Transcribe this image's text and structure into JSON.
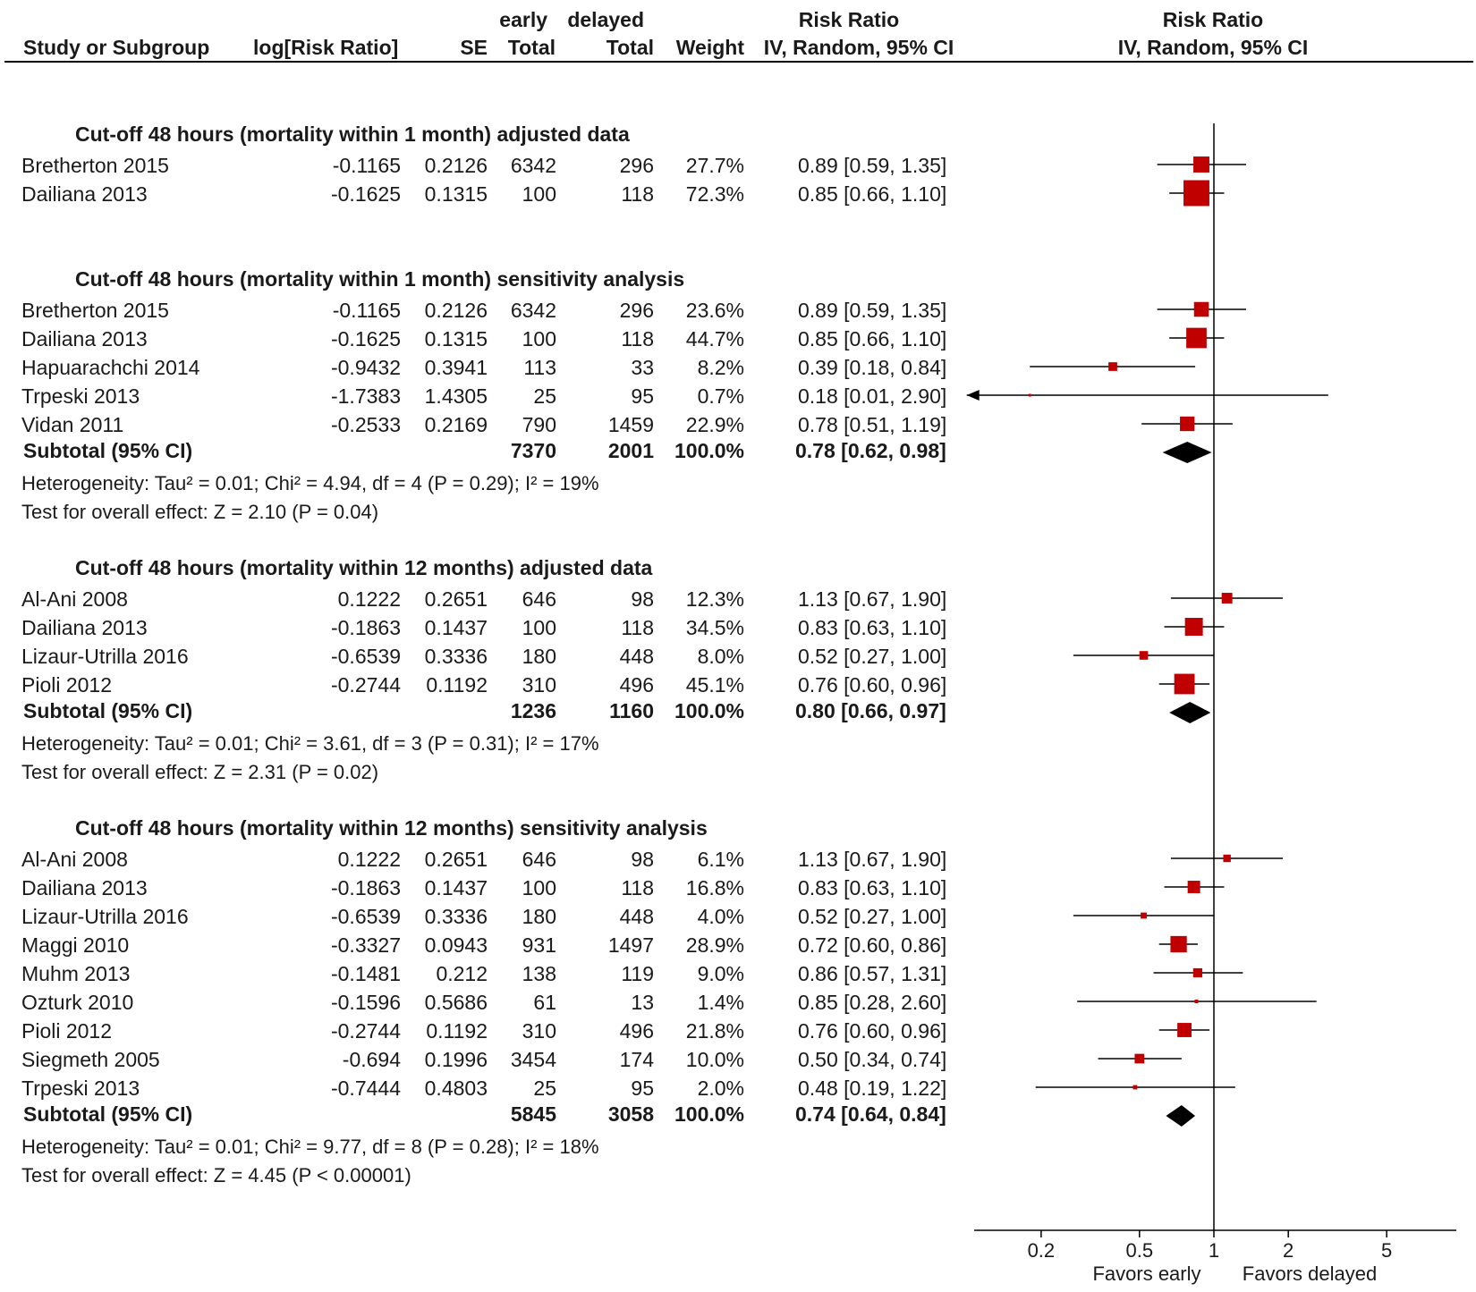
{
  "header": {
    "study_col": "Study or Subgroup",
    "logrr_col": "log[Risk Ratio]",
    "se_col": "SE",
    "early_top": "early",
    "early_total": "Total",
    "delayed_top": "delayed",
    "delayed_total": "Total",
    "weight_col": "Weight",
    "rr_top": "Risk Ratio",
    "rr_method": "IV, Random, 95% CI",
    "plot_top": "Risk Ratio",
    "plot_method": "IV, Random, 95% CI"
  },
  "groups": [
    {
      "title": "Cut-off 48 hours (mortality within 1 month) adjusted data",
      "rows": [
        {
          "study": "Bretherton 2015",
          "logrr": "-0.1165",
          "se": "0.2126",
          "early": "6342",
          "delayed": "296",
          "weight": "27.7%",
          "ci": "0.89 [0.59, 1.35]"
        },
        {
          "study": "Dailiana 2013",
          "logrr": "-0.1625",
          "se": "0.1315",
          "early": "100",
          "delayed": "118",
          "weight": "72.3%",
          "ci": "0.85 [0.66, 1.10]"
        }
      ]
    },
    {
      "title": "Cut-off 48 hours (mortality within 1 month) sensitivity analysis",
      "rows": [
        {
          "study": "Bretherton 2015",
          "logrr": "-0.1165",
          "se": "0.2126",
          "early": "6342",
          "delayed": "296",
          "weight": "23.6%",
          "ci": "0.89 [0.59, 1.35]"
        },
        {
          "study": "Dailiana 2013",
          "logrr": "-0.1625",
          "se": "0.1315",
          "early": "100",
          "delayed": "118",
          "weight": "44.7%",
          "ci": "0.85 [0.66, 1.10]"
        },
        {
          "study": "Hapuarachchi 2014",
          "logrr": "-0.9432",
          "se": "0.3941",
          "early": "113",
          "delayed": "33",
          "weight": "8.2%",
          "ci": "0.39 [0.18, 0.84]"
        },
        {
          "study": "Trpeski 2013",
          "logrr": "-1.7383",
          "se": "1.4305",
          "early": "25",
          "delayed": "95",
          "weight": "0.7%",
          "ci": "0.18 [0.01, 2.90]"
        },
        {
          "study": "Vidan 2011",
          "logrr": "-0.2533",
          "se": "0.2169",
          "early": "790",
          "delayed": "1459",
          "weight": "22.9%",
          "ci": "0.78 [0.51, 1.19]"
        }
      ],
      "subtotal": {
        "label": "Subtotal (95% CI)",
        "early": "7370",
        "delayed": "2001",
        "weight": "100.0%",
        "ci": "0.78 [0.62, 0.98]"
      },
      "heterogeneity": "Heterogeneity: Tau² = 0.01; Chi² = 4.94, df = 4 (P = 0.29); I² = 19%",
      "overall": "Test for overall effect: Z = 2.10 (P = 0.04)"
    },
    {
      "title": "Cut-off 48 hours (mortality within 12 months) adjusted data",
      "rows": [
        {
          "study": "Al-Ani 2008",
          "logrr": "0.1222",
          "se": "0.2651",
          "early": "646",
          "delayed": "98",
          "weight": "12.3%",
          "ci": "1.13 [0.67, 1.90]"
        },
        {
          "study": "Dailiana 2013",
          "logrr": "-0.1863",
          "se": "0.1437",
          "early": "100",
          "delayed": "118",
          "weight": "34.5%",
          "ci": "0.83 [0.63, 1.10]"
        },
        {
          "study": "Lizaur-Utrilla 2016",
          "logrr": "-0.6539",
          "se": "0.3336",
          "early": "180",
          "delayed": "448",
          "weight": "8.0%",
          "ci": "0.52 [0.27, 1.00]"
        },
        {
          "study": "Pioli 2012",
          "logrr": "-0.2744",
          "se": "0.1192",
          "early": "310",
          "delayed": "496",
          "weight": "45.1%",
          "ci": "0.76 [0.60, 0.96]"
        }
      ],
      "subtotal": {
        "label": "Subtotal (95% CI)",
        "early": "1236",
        "delayed": "1160",
        "weight": "100.0%",
        "ci": "0.80 [0.66, 0.97]"
      },
      "heterogeneity": "Heterogeneity: Tau² = 0.01; Chi² = 3.61, df = 3 (P = 0.31); I² = 17%",
      "overall": "Test for overall effect: Z = 2.31 (P = 0.02)"
    },
    {
      "title": "Cut-off 48 hours (mortality within 12 months) sensitivity analysis",
      "rows": [
        {
          "study": "Al-Ani 2008",
          "logrr": "0.1222",
          "se": "0.2651",
          "early": "646",
          "delayed": "98",
          "weight": "6.1%",
          "ci": "1.13 [0.67, 1.90]"
        },
        {
          "study": "Dailiana 2013",
          "logrr": "-0.1863",
          "se": "0.1437",
          "early": "100",
          "delayed": "118",
          "weight": "16.8%",
          "ci": "0.83 [0.63, 1.10]"
        },
        {
          "study": "Lizaur-Utrilla 2016",
          "logrr": "-0.6539",
          "se": "0.3336",
          "early": "180",
          "delayed": "448",
          "weight": "4.0%",
          "ci": "0.52 [0.27, 1.00]"
        },
        {
          "study": "Maggi 2010",
          "logrr": "-0.3327",
          "se": "0.0943",
          "early": "931",
          "delayed": "1497",
          "weight": "28.9%",
          "ci": "0.72 [0.60, 0.86]"
        },
        {
          "study": "Muhm 2013",
          "logrr": "-0.1481",
          "se": "0.212",
          "early": "138",
          "delayed": "119",
          "weight": "9.0%",
          "ci": "0.86 [0.57, 1.31]"
        },
        {
          "study": "Ozturk 2010",
          "logrr": "-0.1596",
          "se": "0.5686",
          "early": "61",
          "delayed": "13",
          "weight": "1.4%",
          "ci": "0.85 [0.28, 2.60]"
        },
        {
          "study": "Pioli 2012",
          "logrr": "-0.2744",
          "se": "0.1192",
          "early": "310",
          "delayed": "496",
          "weight": "21.8%",
          "ci": "0.76 [0.60, 0.96]"
        },
        {
          "study": "Siegmeth 2005",
          "logrr": "-0.694",
          "se": "0.1996",
          "early": "3454",
          "delayed": "174",
          "weight": "10.0%",
          "ci": "0.50 [0.34, 0.74]"
        },
        {
          "study": "Trpeski 2013",
          "logrr": "-0.7444",
          "se": "0.4803",
          "early": "25",
          "delayed": "95",
          "weight": "2.0%",
          "ci": "0.48 [0.19, 1.22]"
        }
      ],
      "subtotal": {
        "label": "Subtotal (95% CI)",
        "early": "5845",
        "delayed": "3058",
        "weight": "100.0%",
        "ci": "0.74 [0.64, 0.84]"
      },
      "heterogeneity": "Heterogeneity: Tau² = 0.01; Chi² = 9.77, df = 8 (P = 0.28); I² = 18%",
      "overall": "Test for overall effect: Z = 4.45 (P < 0.00001)"
    }
  ],
  "axis": {
    "ticks": [
      0.2,
      0.5,
      1,
      2,
      5
    ],
    "tick_labels": [
      "0.2",
      "0.5",
      "1",
      "2",
      "5"
    ],
    "left_label": "Favors early",
    "right_label": "Favors delayed"
  },
  "colors": {
    "marker": "#c00000",
    "diamond": "#000000",
    "line": "#000000"
  },
  "chart_data": {
    "type": "forest",
    "title": "Risk Ratio IV, Random, 95% CI",
    "xscale": "log",
    "xlim": [
      0.1,
      10
    ],
    "reference_line": 1,
    "xlabel_left": "Favors early",
    "xlabel_right": "Favors delayed",
    "series": [
      {
        "group": "Cut-off 48 hours (mortality within 1 month) adjusted data",
        "points": [
          {
            "study": "Bretherton 2015",
            "rr": 0.89,
            "lower": 0.59,
            "upper": 1.35,
            "weight": 27.7
          },
          {
            "study": "Dailiana 2013",
            "rr": 0.85,
            "lower": 0.66,
            "upper": 1.1,
            "weight": 72.3
          }
        ]
      },
      {
        "group": "Cut-off 48 hours (mortality within 1 month) sensitivity analysis",
        "points": [
          {
            "study": "Bretherton 2015",
            "rr": 0.89,
            "lower": 0.59,
            "upper": 1.35,
            "weight": 23.6
          },
          {
            "study": "Dailiana 2013",
            "rr": 0.85,
            "lower": 0.66,
            "upper": 1.1,
            "weight": 44.7
          },
          {
            "study": "Hapuarachchi 2014",
            "rr": 0.39,
            "lower": 0.18,
            "upper": 0.84,
            "weight": 8.2
          },
          {
            "study": "Trpeski 2013",
            "rr": 0.18,
            "lower": 0.01,
            "upper": 2.9,
            "weight": 0.7
          },
          {
            "study": "Vidan 2011",
            "rr": 0.78,
            "lower": 0.51,
            "upper": 1.19,
            "weight": 22.9
          }
        ],
        "subtotal": {
          "rr": 0.78,
          "lower": 0.62,
          "upper": 0.98
        }
      },
      {
        "group": "Cut-off 48 hours (mortality within 12 months) adjusted data",
        "points": [
          {
            "study": "Al-Ani 2008",
            "rr": 1.13,
            "lower": 0.67,
            "upper": 1.9,
            "weight": 12.3
          },
          {
            "study": "Dailiana 2013",
            "rr": 0.83,
            "lower": 0.63,
            "upper": 1.1,
            "weight": 34.5
          },
          {
            "study": "Lizaur-Utrilla 2016",
            "rr": 0.52,
            "lower": 0.27,
            "upper": 1.0,
            "weight": 8.0
          },
          {
            "study": "Pioli 2012",
            "rr": 0.76,
            "lower": 0.6,
            "upper": 0.96,
            "weight": 45.1
          }
        ],
        "subtotal": {
          "rr": 0.8,
          "lower": 0.66,
          "upper": 0.97
        }
      },
      {
        "group": "Cut-off 48 hours (mortality within 12 months) sensitivity analysis",
        "points": [
          {
            "study": "Al-Ani 2008",
            "rr": 1.13,
            "lower": 0.67,
            "upper": 1.9,
            "weight": 6.1
          },
          {
            "study": "Dailiana 2013",
            "rr": 0.83,
            "lower": 0.63,
            "upper": 1.1,
            "weight": 16.8
          },
          {
            "study": "Lizaur-Utrilla 2016",
            "rr": 0.52,
            "lower": 0.27,
            "upper": 1.0,
            "weight": 4.0
          },
          {
            "study": "Maggi 2010",
            "rr": 0.72,
            "lower": 0.6,
            "upper": 0.86,
            "weight": 28.9
          },
          {
            "study": "Muhm 2013",
            "rr": 0.86,
            "lower": 0.57,
            "upper": 1.31,
            "weight": 9.0
          },
          {
            "study": "Ozturk 2010",
            "rr": 0.85,
            "lower": 0.28,
            "upper": 2.6,
            "weight": 1.4
          },
          {
            "study": "Pioli 2012",
            "rr": 0.76,
            "lower": 0.6,
            "upper": 0.96,
            "weight": 21.8
          },
          {
            "study": "Siegmeth 2005",
            "rr": 0.5,
            "lower": 0.34,
            "upper": 0.74,
            "weight": 10.0
          },
          {
            "study": "Trpeski 2013",
            "rr": 0.48,
            "lower": 0.19,
            "upper": 1.22,
            "weight": 2.0
          }
        ],
        "subtotal": {
          "rr": 0.74,
          "lower": 0.64,
          "upper": 0.84
        }
      }
    ]
  }
}
